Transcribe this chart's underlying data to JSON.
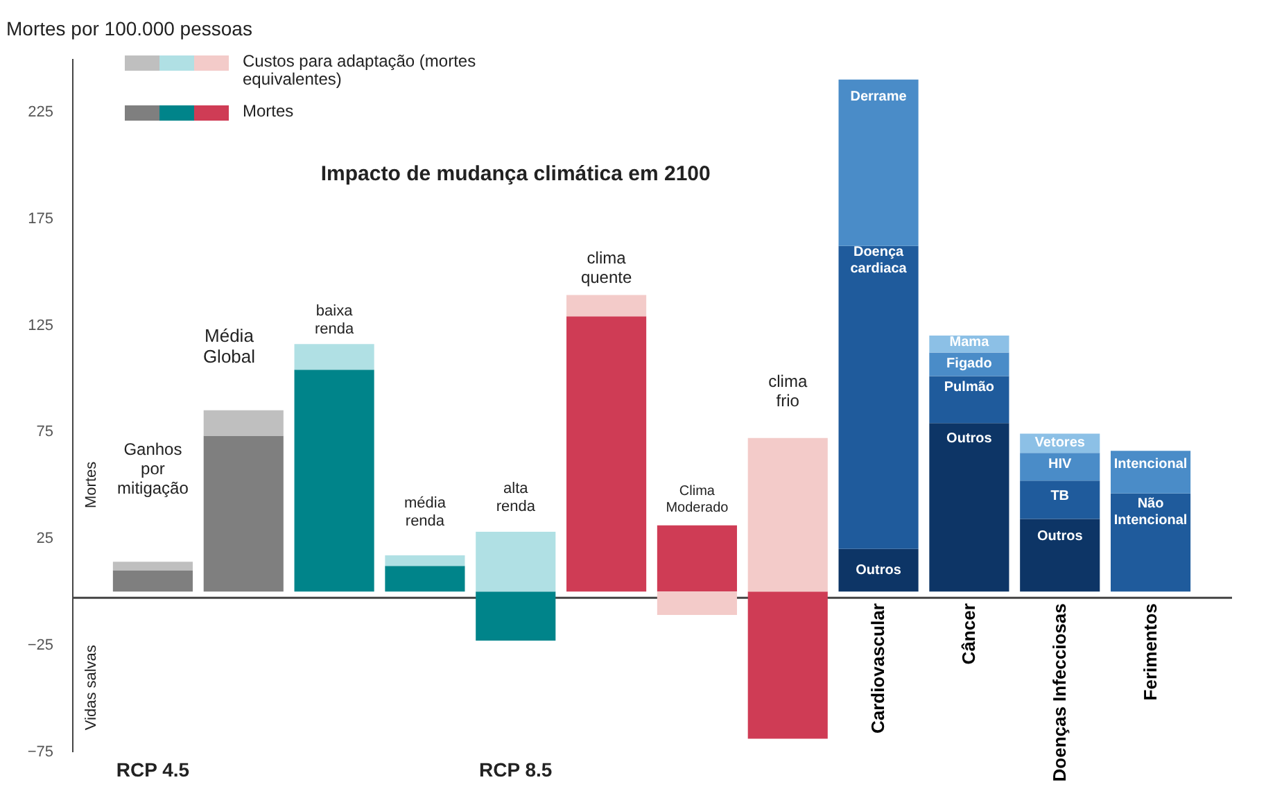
{
  "chart_data": {
    "type": "bar",
    "stacked": true,
    "ylabel": "Mortes por 100.000 pessoas",
    "categories": [
      null,
      null,
      null,
      null,
      null,
      null,
      null,
      null,
      "Cardiovascular",
      "Câncer",
      "Doenças Infecciosas",
      "Ferimentos"
    ],
    "series": [
      {
        "name": "Mortes",
        "values": [
          10,
          73,
          104,
          12,
          -23,
          129,
          31,
          -69,
          null,
          null,
          null,
          null
        ],
        "colors": [
          "#7f7f7f",
          "#7f7f7f",
          "#00848a",
          "#00848a",
          "#00848a",
          "#cf3c55",
          "#cf3c55",
          "#cf3c55",
          null,
          null,
          null,
          null
        ]
      },
      {
        "name": "Custos para adaptação (mortes equivalentes)",
        "values": [
          4,
          12,
          12,
          5,
          28,
          10,
          -11,
          72,
          null,
          null,
          null,
          null
        ],
        "colors": [
          "#bfbfbf",
          "#bfbfbf",
          "#b0e0e4",
          "#b0e0e4",
          "#b0e0e4",
          "#f3cbc9",
          "#f3cbc9",
          "#f3cbc9",
          null,
          null,
          null,
          null
        ]
      },
      {
        "values": [
          null,
          null,
          null,
          null,
          null,
          null,
          null,
          null,
          20,
          79,
          34,
          46
        ],
        "colors": [
          null,
          null,
          null,
          null,
          null,
          null,
          null,
          null,
          "#0d3566",
          "#0d3566",
          "#0d3566",
          "#1f5b9c"
        ]
      },
      {
        "values": [
          null,
          null,
          null,
          null,
          null,
          null,
          null,
          null,
          142,
          22,
          18,
          20
        ],
        "colors": [
          null,
          null,
          null,
          null,
          null,
          null,
          null,
          null,
          "#1f5b9c",
          "#1f5b9c",
          "#1f5b9c",
          "#4a8cc8"
        ]
      },
      {
        "values": [
          null,
          null,
          null,
          null,
          null,
          null,
          null,
          null,
          78,
          11,
          13,
          null
        ],
        "colors": [
          null,
          null,
          null,
          null,
          null,
          null,
          null,
          null,
          "#4a8cc8",
          "#4a8cc8",
          "#4a8cc8",
          null
        ]
      },
      {
        "values": [
          null,
          null,
          null,
          null,
          null,
          null,
          null,
          null,
          null,
          8,
          9,
          null
        ],
        "colors": [
          null,
          null,
          null,
          null,
          null,
          null,
          null,
          null,
          null,
          "#8cc0e6",
          "#8cc0e6",
          null
        ]
      }
    ],
    "ylim": [
      -75,
      250
    ],
    "yticks": [
      -75,
      -25,
      25,
      75,
      125,
      175,
      225
    ],
    "legend": "top left",
    "annotations": [
      "Impacto de mudança climática em 2100",
      "Média Global",
      "Ganhos por mitigação",
      "baixa renda",
      "média renda",
      "alta renda",
      "clima quente",
      "Clima Moderado",
      "clima frio",
      "RCP 4.5",
      "RCP 8.5",
      "Mortes",
      "Vidas salvas",
      "Outros",
      "Doença cardiaca",
      "Derrame",
      "Outros",
      "Pulmão",
      "Figado",
      "Mama",
      "Outros",
      "TB",
      "HIV",
      "Vetores",
      "Não Intencional",
      "Intencional"
    ]
  }
}
